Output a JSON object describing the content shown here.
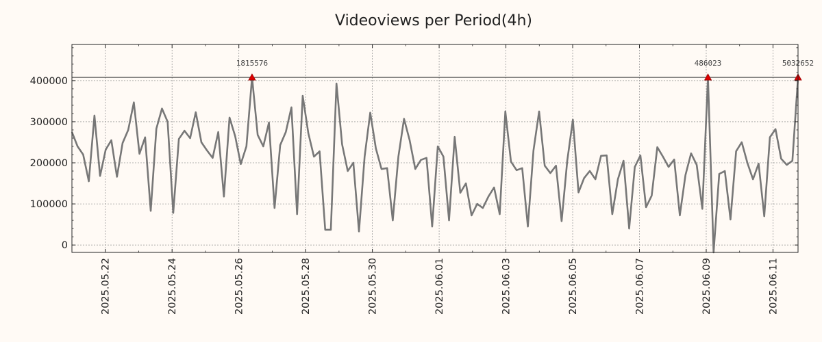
{
  "chart_data": {
    "type": "line",
    "title": "Videoviews per Period(4h)",
    "xlabel": "",
    "ylabel": "",
    "xlim": [
      "2025-05-21",
      "2025-06-11.75"
    ],
    "ylim": [
      -18000,
      488000
    ],
    "x_ticks": [
      "2025.05.22",
      "2025.05.24",
      "2025.05.26",
      "2025.05.28",
      "2025.05.30",
      "2025.06.01",
      "2025.06.03",
      "2025.06.05",
      "2025.06.07",
      "2025.06.09",
      "2025.06.11"
    ],
    "y_ticks": [
      0,
      100000,
      200000,
      300000,
      400000
    ],
    "y_tick_labels": [
      "0",
      "100000",
      "200000",
      "300000",
      "400000"
    ],
    "grid": true,
    "reference_line": 408000,
    "series": [
      {
        "name": "Videoviews",
        "color": "#777777",
        "values": [
          275000,
          240000,
          220000,
          155000,
          315000,
          168000,
          232000,
          255000,
          166000,
          248000,
          280000,
          347000,
          222000,
          262000,
          83000,
          283000,
          332000,
          300000,
          78000,
          258000,
          278000,
          260000,
          323000,
          250000,
          230000,
          212000,
          275000,
          118000,
          310000,
          265000,
          197000,
          240000,
          408000,
          268000,
          240000,
          298000,
          90000,
          243000,
          275000,
          335000,
          75000,
          363000,
          272000,
          215000,
          228000,
          37000,
          37000,
          393000,
          245000,
          180000,
          200000,
          33000,
          215000,
          322000,
          235000,
          185000,
          187000,
          60000,
          215000,
          307000,
          255000,
          185000,
          207000,
          212000,
          45000,
          240000,
          215000,
          60000,
          263000,
          127000,
          150000,
          72000,
          100000,
          90000,
          118000,
          140000,
          75000,
          325000,
          203000,
          182000,
          187000,
          45000,
          230000,
          325000,
          193000,
          175000,
          193000,
          58000,
          205000,
          305000,
          128000,
          163000,
          180000,
          160000,
          217000,
          218000,
          75000,
          160000,
          205000,
          40000,
          190000,
          218000,
          92000,
          120000,
          238000,
          215000,
          190000,
          208000,
          72000,
          170000,
          223000,
          195000,
          88000,
          408000,
          -18000,
          173000,
          180000,
          62000,
          228000,
          250000,
          200000,
          160000,
          198000,
          70000,
          262000,
          282000,
          210000,
          195000,
          205000,
          408000
        ]
      }
    ],
    "annotations": [
      {
        "index": 32,
        "label": "1815576"
      },
      {
        "index": 113,
        "label": "486023"
      },
      {
        "index": 129,
        "label": "5032652"
      }
    ]
  },
  "colors": {
    "background": "#fffaf5",
    "line": "#777777",
    "marker": "#dd0000",
    "reference_line": "#333333",
    "grid": "#999999"
  }
}
